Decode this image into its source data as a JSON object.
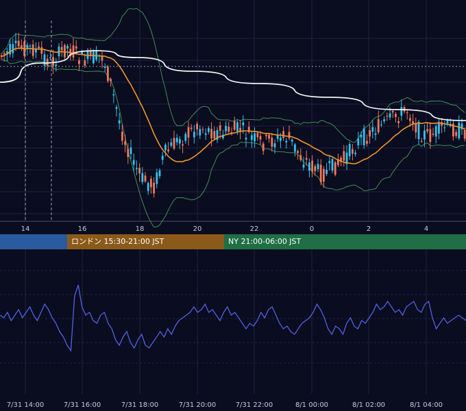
{
  "colors": {
    "background": "#0a0c1f",
    "grid": "#1e2542",
    "candle_up": "#2ec4f2",
    "candle_down": "#f2785a",
    "bollinger": "#3f8f5a",
    "ma_fast": "#f0962a",
    "ma_slow": "#f4f4f4",
    "oscillator": "#4f63e6",
    "session_tokyo": "#2a5aa0",
    "session_london": "#8b5a1a",
    "session_ny": "#1f6e45"
  },
  "sessions": [
    {
      "label": "",
      "color": "#2a5aa0"
    },
    {
      "label": "ロンドン 15:30-21:00 JST",
      "color": "#8b5a1a"
    },
    {
      "label": "NY 21:00-06:00 JST",
      "color": "#1f6e45"
    }
  ],
  "chart_data": [
    {
      "type": "candlestick",
      "x_ticks": [
        "14",
        "16",
        "18",
        "20",
        "22",
        "0",
        "2",
        "4"
      ],
      "overlays": [
        "bollinger-bands",
        "moving-average-fast",
        "moving-average-slow"
      ],
      "grid": true
    },
    {
      "type": "line",
      "x_ticks": [
        "7/31 14:00",
        "7/31 16:00",
        "7/31 18:00",
        "7/31 20:00",
        "7/31 22:00",
        "8/1 00:00",
        "8/1 02:00",
        "8/1 04:00"
      ],
      "series": [
        {
          "values": [
            0.2,
            0.1,
            0.3,
            0.0,
            0.2,
            0.4,
            0.1,
            0.3,
            0.5,
            0.2,
            0.0,
            0.3,
            0.6,
            0.4,
            0.1,
            -0.1,
            -0.4,
            -0.6,
            -0.9,
            -1.1,
            0.9,
            1.3,
            0.5,
            0.2,
            0.3,
            0.0,
            -0.1,
            0.2,
            0.3,
            -0.1,
            -0.3,
            -0.7,
            -0.9,
            -0.6,
            -0.4,
            -0.8,
            -1.0,
            -0.7,
            -0.5,
            -0.9,
            -1.0,
            -0.8,
            -0.6,
            -0.4,
            -0.6,
            -0.3,
            -0.5,
            -0.2,
            0.0,
            0.1,
            0.2,
            0.3,
            0.5,
            0.3,
            0.4,
            0.6,
            0.3,
            0.4,
            0.2,
            0.0,
            0.3,
            0.5,
            0.2,
            0.3,
            0.1,
            -0.1,
            -0.3,
            -0.1,
            -0.2,
            0.0,
            0.3,
            0.1,
            0.4,
            0.5,
            0.2,
            -0.1,
            -0.3,
            -0.2,
            -0.4,
            -0.5,
            -0.3,
            -0.1,
            0.0,
            0.1,
            0.3,
            0.6,
            0.4,
            0.1,
            -0.3,
            -0.5,
            -0.2,
            -0.3,
            -0.5,
            -0.1,
            0.1,
            -0.2,
            -0.3,
            0.0,
            -0.1,
            0.1,
            0.3,
            0.6,
            0.4,
            0.5,
            0.7,
            0.5,
            0.3,
            0.4,
            0.2,
            0.5,
            0.6,
            0.7,
            0.4,
            0.3,
            0.6,
            0.7,
            0.1,
            -0.3,
            -0.1,
            0.1,
            -0.1,
            0.0,
            0.1,
            0.2,
            0.1,
            0.0
          ]
        }
      ],
      "grid": true
    }
  ]
}
